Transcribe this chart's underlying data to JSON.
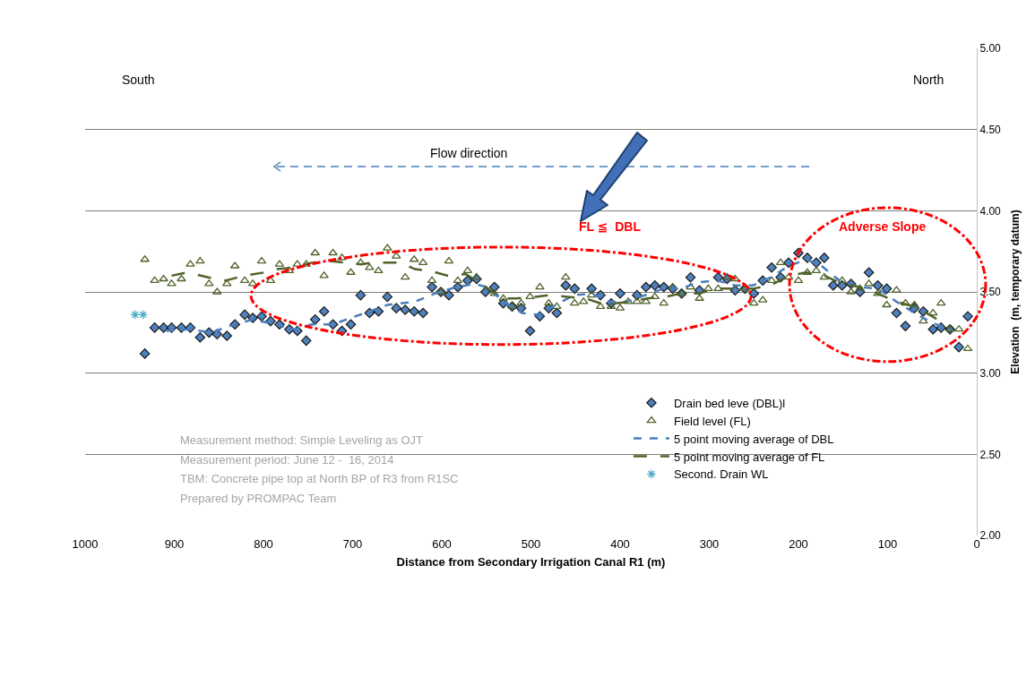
{
  "chart_data": {
    "type": "scatter",
    "xlabel": "Distance from Secondary Irrigation Canal R1 (m)",
    "ylabel": "Elevation  (m, temporary datum)",
    "xlim": [
      1000,
      0
    ],
    "xticks": [
      1000,
      900,
      800,
      700,
      600,
      500,
      400,
      300,
      200,
      100,
      0
    ],
    "ylim": [
      2,
      5
    ],
    "yticks": [
      {
        "value": 2,
        "label": "2.00"
      },
      {
        "value": 2.5,
        "label": "2.50"
      },
      {
        "value": 3,
        "label": "3.00"
      },
      {
        "value": 3.5,
        "label": "3.50"
      },
      {
        "value": 4,
        "label": "4.00"
      },
      {
        "value": 4.5,
        "label": "4.50"
      },
      {
        "value": 5,
        "label": "5.00"
      }
    ],
    "grid": "y",
    "legend": "bottom right",
    "annotations": [
      "South",
      "North",
      "Flow direction",
      "FL ≦  DBL",
      "Adverse Slope",
      "Measurement method: Simple Leveling as OJT",
      "Measurement period: June 12 -  16, 2014",
      "TBM: Concrete pipe top at North BP of R3 from R1SC",
      "Prepared by PROMPAC Team"
    ],
    "series": [
      {
        "name": "Drain bed leve (DBL)l",
        "marker": "diamond",
        "color": "#4f81bd",
        "x": [
          933,
          922,
          912,
          903,
          892,
          882,
          871,
          861,
          852,
          841,
          832,
          821,
          812,
          802,
          792,
          782,
          771,
          762,
          752,
          742,
          732,
          722,
          712,
          702,
          691,
          681,
          671,
          661,
          651,
          641,
          631,
          621,
          611,
          601,
          592,
          582,
          571,
          561,
          551,
          541,
          531,
          521,
          511,
          501,
          490,
          480,
          471,
          461,
          451,
          432,
          422,
          410,
          400,
          381,
          371,
          361,
          351,
          341,
          331,
          321,
          311,
          290,
          280,
          271,
          260,
          250,
          240,
          230,
          220,
          211,
          200,
          190,
          180,
          171,
          161,
          151,
          141,
          131,
          121,
          111,
          101,
          90,
          80,
          70,
          60,
          49,
          40,
          30,
          20,
          10
        ],
        "values": [
          3.12,
          3.28,
          3.28,
          3.28,
          3.28,
          3.28,
          3.22,
          3.25,
          3.24,
          3.23,
          3.3,
          3.36,
          3.34,
          3.35,
          3.32,
          3.3,
          3.27,
          3.26,
          3.2,
          3.33,
          3.38,
          3.3,
          3.26,
          3.3,
          3.48,
          3.37,
          3.38,
          3.47,
          3.4,
          3.39,
          3.38,
          3.37,
          3.53,
          3.5,
          3.48,
          3.53,
          3.57,
          3.58,
          3.5,
          3.53,
          3.43,
          3.41,
          3.4,
          3.26,
          3.35,
          3.4,
          3.37,
          3.54,
          3.52,
          3.52,
          3.48,
          3.43,
          3.49,
          3.48,
          3.53,
          3.54,
          3.53,
          3.52,
          3.49,
          3.59,
          3.51,
          3.59,
          3.58,
          3.51,
          3.52,
          3.49,
          3.57,
          3.65,
          3.59,
          3.68,
          3.74,
          3.71,
          3.68,
          3.71,
          3.54,
          3.54,
          3.55,
          3.5,
          3.62,
          3.54,
          3.52,
          3.37,
          3.29,
          3.4,
          3.38,
          3.27,
          3.28,
          3.27,
          3.16,
          3.35
        ]
      },
      {
        "name": "Field level (FL)",
        "marker": "triangle",
        "color": "#4f6228",
        "x": [
          933,
          922,
          912,
          903,
          892,
          882,
          871,
          861,
          852,
          841,
          832,
          821,
          812,
          802,
          792,
          782,
          771,
          762,
          752,
          742,
          732,
          722,
          712,
          702,
          691,
          681,
          671,
          661,
          651,
          641,
          631,
          621,
          611,
          601,
          592,
          582,
          571,
          561,
          541,
          531,
          521,
          511,
          501,
          490,
          480,
          471,
          461,
          451,
          441,
          432,
          422,
          410,
          400,
          391,
          381,
          371,
          361,
          351,
          341,
          331,
          321,
          311,
          301,
          290,
          280,
          271,
          260,
          250,
          240,
          230,
          220,
          211,
          200,
          190,
          180,
          171,
          151,
          141,
          131,
          121,
          111,
          101,
          90,
          80,
          70,
          60,
          49,
          40,
          30,
          20,
          10
        ],
        "values": [
          3.7,
          3.57,
          3.58,
          3.55,
          3.58,
          3.67,
          3.69,
          3.55,
          3.5,
          3.55,
          3.66,
          3.57,
          3.55,
          3.69,
          3.57,
          3.67,
          3.63,
          3.67,
          3.67,
          3.74,
          3.6,
          3.74,
          3.71,
          3.62,
          3.68,
          3.65,
          3.63,
          3.77,
          3.72,
          3.59,
          3.7,
          3.68,
          3.57,
          3.5,
          3.69,
          3.57,
          3.63,
          3.59,
          3.49,
          3.46,
          3.41,
          3.43,
          3.47,
          3.53,
          3.43,
          3.41,
          3.59,
          3.43,
          3.44,
          3.48,
          3.41,
          3.41,
          3.4,
          3.44,
          3.44,
          3.44,
          3.47,
          3.43,
          3.53,
          3.49,
          3.53,
          3.46,
          3.52,
          3.52,
          3.59,
          3.58,
          3.52,
          3.43,
          3.45,
          3.57,
          3.68,
          3.59,
          3.57,
          3.62,
          3.63,
          3.59,
          3.57,
          3.5,
          3.52,
          3.55,
          3.49,
          3.42,
          3.51,
          3.43,
          3.42,
          3.32,
          3.37,
          3.43,
          3.27,
          3.27,
          3.15
        ]
      },
      {
        "name": "5 point moving average of DBL",
        "type": "line",
        "line_style": "dashed",
        "color": "#4a7ebb",
        "x": [
          909,
          882,
          859,
          832,
          812,
          786,
          766,
          746,
          722,
          702,
          681,
          661,
          630,
          603,
          583,
          563,
          550,
          530,
          510,
          492,
          472,
          452,
          432,
          412,
          392,
          372,
          352,
          332,
          312,
          291,
          271,
          251,
          231,
          211,
          191,
          174,
          154,
          131,
          111,
          90,
          70,
          50,
          30
        ],
        "values": [
          3.26,
          3.27,
          3.25,
          3.3,
          3.33,
          3.3,
          3.27,
          3.3,
          3.3,
          3.34,
          3.38,
          3.42,
          3.44,
          3.5,
          3.53,
          3.55,
          3.53,
          3.44,
          3.37,
          3.36,
          3.42,
          3.48,
          3.49,
          3.44,
          3.44,
          3.48,
          3.52,
          3.52,
          3.56,
          3.57,
          3.54,
          3.54,
          3.59,
          3.66,
          3.7,
          3.66,
          3.57,
          3.53,
          3.52,
          3.44,
          3.37,
          3.31,
          3.27
        ]
      },
      {
        "name": "5 point moving average of FL",
        "type": "line",
        "line_style": "longdash",
        "color": "#4f6228",
        "x": [
          903,
          886,
          862,
          842,
          822,
          799,
          786,
          766,
          746,
          726,
          706,
          691,
          678,
          661,
          646,
          630,
          613,
          593,
          573,
          553,
          533,
          516,
          495,
          479,
          459,
          439,
          422,
          405,
          389,
          369,
          349,
          332,
          312,
          291,
          271,
          251,
          231,
          211,
          191,
          171,
          151,
          131,
          111,
          90,
          70,
          50,
          30
        ],
        "values": [
          3.6,
          3.62,
          3.59,
          3.57,
          3.6,
          3.62,
          3.64,
          3.65,
          3.68,
          3.69,
          3.68,
          3.67,
          3.68,
          3.68,
          3.68,
          3.64,
          3.63,
          3.6,
          3.61,
          3.54,
          3.46,
          3.46,
          3.47,
          3.48,
          3.47,
          3.46,
          3.43,
          3.43,
          3.44,
          3.46,
          3.47,
          3.49,
          3.49,
          3.52,
          3.52,
          3.52,
          3.54,
          3.6,
          3.62,
          3.6,
          3.55,
          3.53,
          3.49,
          3.44,
          3.41,
          3.35,
          3.28
        ]
      },
      {
        "name": "Second. Drain WL",
        "marker": "cross",
        "color": "#4bacc6",
        "x": [
          944,
          935
        ],
        "values": [
          3.36,
          3.36
        ]
      }
    ]
  }
}
